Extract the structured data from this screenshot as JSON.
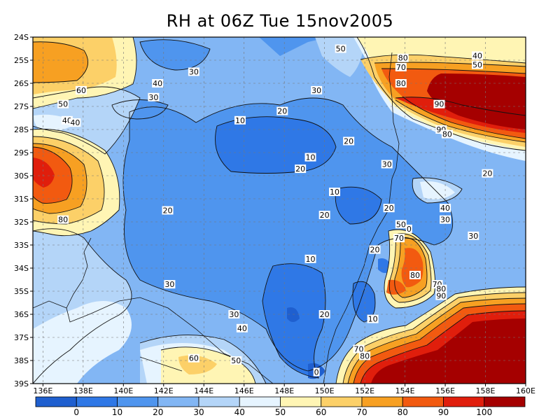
{
  "chart_data": {
    "type": "heatmap",
    "title": "RH at 06Z Tue 15nov2005",
    "xlabel": "",
    "ylabel": "",
    "x_ticks": [
      "136E",
      "138E",
      "140E",
      "142E",
      "144E",
      "146E",
      "148E",
      "150E",
      "152E",
      "154E",
      "156E",
      "158E",
      "160E"
    ],
    "y_ticks": [
      "24S",
      "25S",
      "26S",
      "27S",
      "28S",
      "29S",
      "30S",
      "31S",
      "32S",
      "33S",
      "34S",
      "35S",
      "36S",
      "37S",
      "38S",
      "39S"
    ],
    "xlim": [
      135.5,
      160
    ],
    "ylim": [
      -39,
      -24
    ],
    "grid": true,
    "colorbar": {
      "labels": [
        "0",
        "10",
        "20",
        "30",
        "40",
        "50",
        "60",
        "70",
        "80",
        "90",
        "100"
      ],
      "colors": [
        "#1f5fcf",
        "#2f78e6",
        "#4f95ee",
        "#82b6f4",
        "#b4d5f8",
        "#e6f4ff",
        "#fff5b4",
        "#fcd068",
        "#f7a022",
        "#f25a10",
        "#e01e0c",
        "#a50000"
      ]
    },
    "contour_labels": [
      {
        "text": "50",
        "lon": 150.8,
        "lat": -24.5
      },
      {
        "text": "80",
        "lon": 153.9,
        "lat": -24.9
      },
      {
        "text": "40",
        "lon": 157.6,
        "lat": -24.8
      },
      {
        "text": "70",
        "lon": 153.8,
        "lat": -25.3
      },
      {
        "text": "50",
        "lon": 157.6,
        "lat": -25.2
      },
      {
        "text": "30",
        "lon": 143.5,
        "lat": -25.5
      },
      {
        "text": "40",
        "lon": 141.7,
        "lat": -26.0
      },
      {
        "text": "80",
        "lon": 153.8,
        "lat": -26.0
      },
      {
        "text": "60",
        "lon": 137.9,
        "lat": -26.3
      },
      {
        "text": "30",
        "lon": 149.6,
        "lat": -26.3
      },
      {
        "text": "30",
        "lon": 141.5,
        "lat": -26.6
      },
      {
        "text": "50",
        "lon": 137.0,
        "lat": -26.9
      },
      {
        "text": "90",
        "lon": 155.7,
        "lat": -26.9
      },
      {
        "text": "20",
        "lon": 147.9,
        "lat": -27.2
      },
      {
        "text": "10",
        "lon": 145.8,
        "lat": -27.6
      },
      {
        "text": "40",
        "lon": 137.2,
        "lat": -27.6
      },
      {
        "text": "40",
        "lon": 137.6,
        "lat": -27.7
      },
      {
        "text": "90",
        "lon": 155.8,
        "lat": -28.0
      },
      {
        "text": "80",
        "lon": 156.1,
        "lat": -28.2
      },
      {
        "text": "20",
        "lon": 151.2,
        "lat": -28.5
      },
      {
        "text": "10",
        "lon": 149.3,
        "lat": -29.2
      },
      {
        "text": "30",
        "lon": 153.1,
        "lat": -29.5
      },
      {
        "text": "20",
        "lon": 148.8,
        "lat": -29.7
      },
      {
        "text": "20",
        "lon": 158.1,
        "lat": -29.9
      },
      {
        "text": "10",
        "lon": 150.5,
        "lat": -30.7
      },
      {
        "text": "40",
        "lon": 156.0,
        "lat": -31.4
      },
      {
        "text": "20",
        "lon": 142.2,
        "lat": -31.5
      },
      {
        "text": "20",
        "lon": 153.2,
        "lat": -31.4
      },
      {
        "text": "20",
        "lon": 150.0,
        "lat": -31.7
      },
      {
        "text": "80",
        "lon": 137.0,
        "lat": -31.9
      },
      {
        "text": "30",
        "lon": 156.0,
        "lat": -31.9
      },
      {
        "text": "50",
        "lon": 153.8,
        "lat": -32.1
      },
      {
        "text": "0",
        "lon": 154.2,
        "lat": -32.3
      },
      {
        "text": "70",
        "lon": 153.7,
        "lat": -32.7
      },
      {
        "text": "30",
        "lon": 157.4,
        "lat": -32.6
      },
      {
        "text": "20",
        "lon": 152.5,
        "lat": -33.2
      },
      {
        "text": "10",
        "lon": 149.3,
        "lat": -33.6
      },
      {
        "text": "80",
        "lon": 154.5,
        "lat": -34.3
      },
      {
        "text": "30",
        "lon": 142.3,
        "lat": -34.7
      },
      {
        "text": "70",
        "lon": 155.6,
        "lat": -34.7
      },
      {
        "text": "80",
        "lon": 155.8,
        "lat": -34.9
      },
      {
        "text": "90",
        "lon": 155.8,
        "lat": -35.2
      },
      {
        "text": "30",
        "lon": 145.5,
        "lat": -36.0
      },
      {
        "text": "20",
        "lon": 150.0,
        "lat": -36.0
      },
      {
        "text": "10",
        "lon": 152.4,
        "lat": -36.2
      },
      {
        "text": "40",
        "lon": 145.9,
        "lat": -36.6
      },
      {
        "text": "70",
        "lon": 151.7,
        "lat": -37.5
      },
      {
        "text": "80",
        "lon": 152.0,
        "lat": -37.8
      },
      {
        "text": "60",
        "lon": 143.5,
        "lat": -37.9
      },
      {
        "text": "50",
        "lon": 145.6,
        "lat": -38.0
      },
      {
        "text": "0",
        "lon": 149.6,
        "lat": -38.5
      }
    ]
  }
}
